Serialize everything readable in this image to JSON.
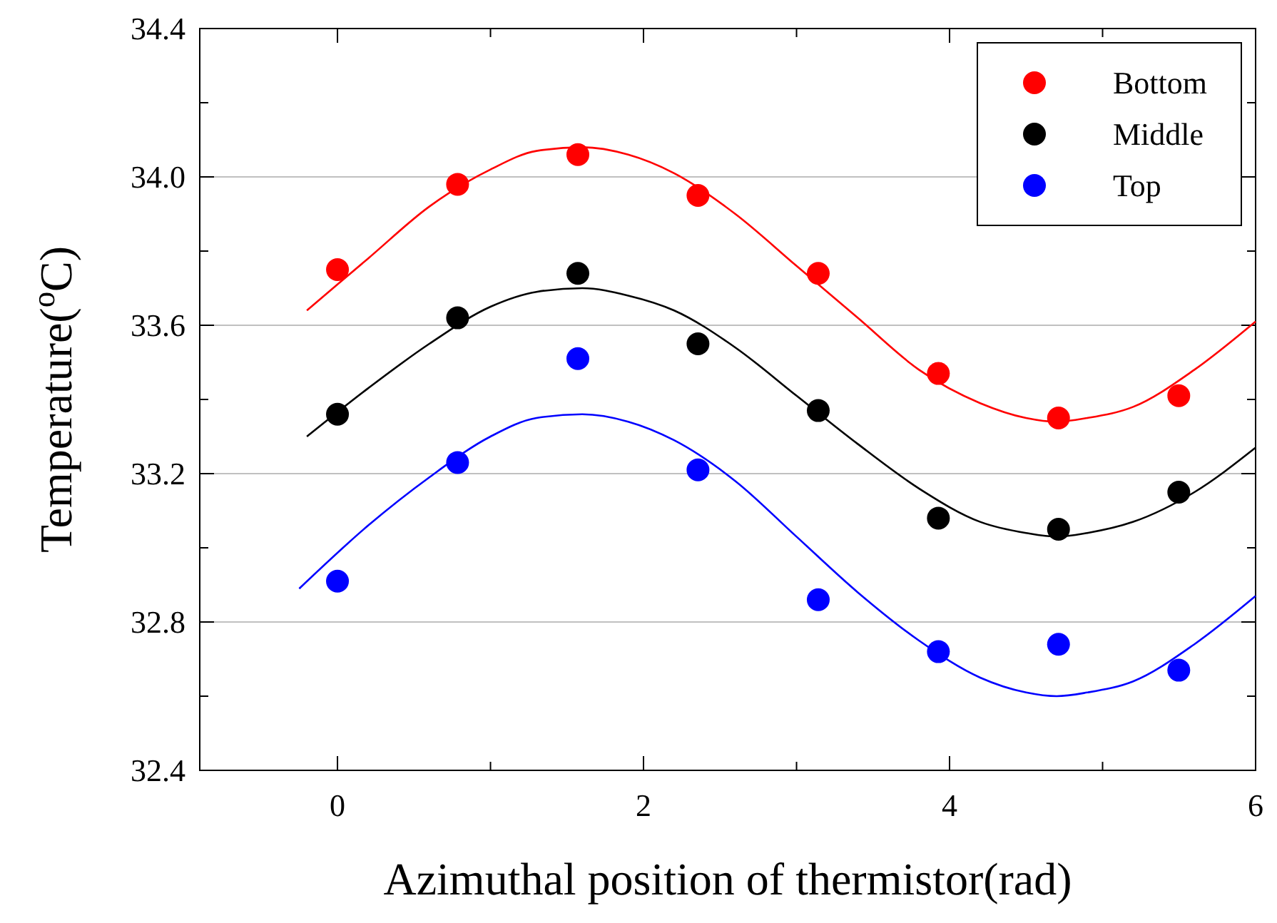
{
  "chart_data": {
    "type": "scatter",
    "xlabel": "Azimuthal position of thermistor(rad)",
    "ylabel": "Temperature($^{o}$C)",
    "xlim": [
      -0.9,
      6
    ],
    "xticks": [
      0,
      {
        "value": 1,
        "label": null
      },
      2,
      {
        "value": 3,
        "label": null
      },
      4,
      {
        "value": 5,
        "label": null
      },
      6
    ],
    "ylim": [
      32.4,
      34.4
    ],
    "yticks": [
      32.4,
      {
        "value": 32.6,
        "label": null
      },
      32.8,
      {
        "value": 33.0,
        "label": null
      },
      33.2,
      {
        "value": 33.4,
        "label": null
      },
      33.6,
      {
        "value": 33.8,
        "label": null
      },
      {
        "value": 34.0,
        "label": "34.0"
      },
      {
        "value": 34.2,
        "label": null
      },
      34.4
    ],
    "grid": "y",
    "legend": "top right",
    "marker": "circle",
    "x": [
      0,
      0.785,
      1.571,
      2.356,
      3.142,
      3.927,
      4.712,
      5.498
    ],
    "series": [
      {
        "name": "Bottom",
        "color": "#ff0000",
        "values": [
          33.75,
          33.98,
          34.06,
          33.95,
          33.74,
          33.47,
          33.35,
          33.41
        ]
      },
      {
        "name": "Middle",
        "color": "#000000",
        "values": [
          33.36,
          33.62,
          33.74,
          33.55,
          33.37,
          33.08,
          33.05,
          33.15
        ]
      },
      {
        "name": "Top",
        "color": "#0000ff",
        "values": [
          32.91,
          33.23,
          33.51,
          33.21,
          32.86,
          32.72,
          32.74,
          32.67
        ]
      },
      {
        "type": "line",
        "marker": "none",
        "line_style": "solid",
        "color": "#ff0000",
        "x": [
          -0.2,
          0.2,
          0.6,
          1.0,
          1.3,
          1.6,
          1.9,
          2.2,
          2.6,
          3.0,
          3.4,
          3.8,
          4.2,
          4.5,
          4.7,
          4.9,
          5.2,
          5.6,
          6.0
        ],
        "values": [
          33.64,
          33.78,
          33.92,
          34.02,
          34.07,
          34.08,
          34.06,
          34.01,
          33.9,
          33.76,
          33.62,
          33.48,
          33.39,
          33.35,
          33.34,
          33.35,
          33.38,
          33.48,
          33.61
        ]
      },
      {
        "type": "line",
        "marker": "none",
        "line_style": "solid",
        "color": "#000000",
        "x": [
          -0.2,
          0.2,
          0.6,
          1.0,
          1.3,
          1.6,
          1.9,
          2.2,
          2.6,
          3.0,
          3.4,
          3.8,
          4.2,
          4.5,
          4.7,
          4.9,
          5.2,
          5.6,
          6.0
        ],
        "values": [
          33.3,
          33.43,
          33.55,
          33.65,
          33.69,
          33.7,
          33.68,
          33.64,
          33.54,
          33.41,
          33.28,
          33.16,
          33.07,
          33.04,
          33.03,
          33.04,
          33.07,
          33.15,
          33.27
        ]
      },
      {
        "type": "line",
        "marker": "none",
        "line_style": "solid",
        "color": "#0000ff",
        "x": [
          -0.25,
          0.2,
          0.6,
          1.0,
          1.3,
          1.6,
          1.9,
          2.2,
          2.6,
          3.0,
          3.4,
          3.8,
          4.2,
          4.5,
          4.7,
          4.9,
          5.2,
          5.6,
          6.0
        ],
        "values": [
          32.89,
          33.06,
          33.19,
          33.3,
          33.35,
          33.36,
          33.34,
          33.29,
          33.18,
          33.03,
          32.88,
          32.75,
          32.65,
          32.61,
          32.6,
          32.61,
          32.64,
          32.74,
          32.87
        ]
      }
    ]
  }
}
